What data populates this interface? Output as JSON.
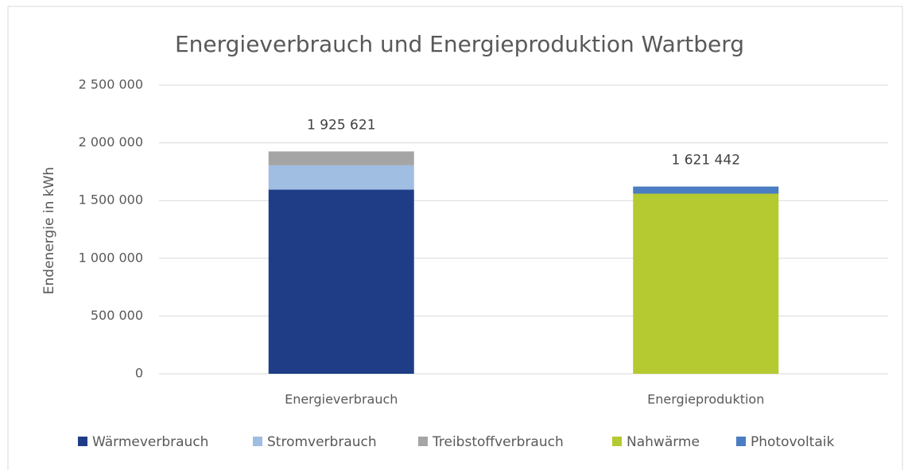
{
  "chart_data": {
    "type": "stacked_bar",
    "title": "Energieverbrauch und Energieproduktion Wartberg",
    "y_label": "Endenergie in kWh",
    "categories": [
      "Energieverbrauch",
      "Energieproduktion"
    ],
    "series": [
      {
        "name": "Wärmeverbrauch",
        "color": "#1f3d87",
        "values": [
          1595000,
          null
        ]
      },
      {
        "name": "Stromverbrauch",
        "color": "#a0bde2",
        "values": [
          210000,
          null
        ]
      },
      {
        "name": "Treibstoffverbrauch",
        "color": "#a5a5a5",
        "values": [
          120621,
          null
        ]
      },
      {
        "name": "Nahwärme",
        "color": "#b5c930",
        "values": [
          null,
          1560000
        ]
      },
      {
        "name": "Photovoltaik",
        "color": "#4a7dc2",
        "values": [
          null,
          61442
        ]
      }
    ],
    "totals": {
      "values": [
        1925621,
        1621442
      ],
      "value_labels": [
        "1 925 621",
        "1 621 442"
      ]
    },
    "ylim": [
      0,
      2500000
    ],
    "yticks": [
      0,
      {
        "value": 500000,
        "label": "500 000"
      },
      {
        "value": 1000000,
        "label": "1 000 000"
      },
      {
        "value": 1500000,
        "label": "1 500 000"
      },
      {
        "value": 2000000,
        "label": "2 000 000"
      },
      {
        "value": 2500000,
        "label": "2 500 000"
      }
    ],
    "grid": true,
    "legend": "bottom"
  }
}
